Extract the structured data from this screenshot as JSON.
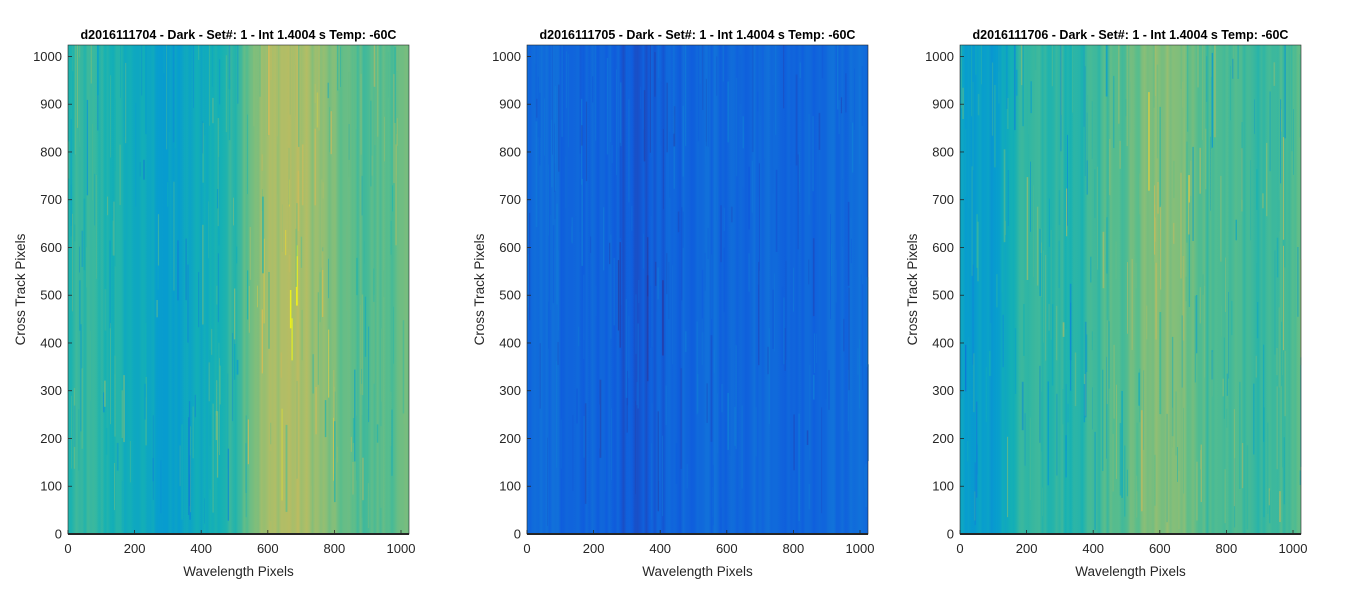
{
  "chart_data": [
    {
      "type": "heatmap",
      "title": "d2016111704 - Dark - Set#: 1 - Int 1.4004 s Temp: -60C",
      "xlabel": "Wavelength Pixels",
      "ylabel": "Cross Track Pixels",
      "xlim": [
        0,
        1024
      ],
      "ylim": [
        0,
        1024
      ],
      "xticks": [
        0,
        200,
        400,
        600,
        800,
        1000
      ],
      "yticks": [
        0,
        100,
        200,
        300,
        400,
        500,
        600,
        700,
        800,
        900,
        1000
      ],
      "grid": false,
      "colormap": "parula",
      "column_profile": {
        "x": [
          0,
          50,
          100,
          150,
          200,
          250,
          300,
          350,
          400,
          450,
          500,
          550,
          600,
          650,
          700,
          750,
          800,
          850,
          900,
          950,
          1024
        ],
        "level": [
          0.52,
          0.55,
          0.53,
          0.5,
          0.46,
          0.44,
          0.38,
          0.42,
          0.47,
          0.5,
          0.55,
          0.68,
          0.74,
          0.78,
          0.76,
          0.72,
          0.66,
          0.62,
          0.6,
          0.62,
          0.64
        ]
      }
    },
    {
      "type": "heatmap",
      "title": "d2016111705 - Dark - Set#: 1 - Int 1.4004 s Temp: -60C",
      "xlabel": "Wavelength Pixels",
      "ylabel": "Cross Track Pixels",
      "xlim": [
        0,
        1024
      ],
      "ylim": [
        0,
        1024
      ],
      "xticks": [
        0,
        200,
        400,
        600,
        800,
        1000
      ],
      "yticks": [
        0,
        100,
        200,
        300,
        400,
        500,
        600,
        700,
        800,
        900,
        1000
      ],
      "grid": false,
      "colormap": "parula",
      "column_profile": {
        "x": [
          0,
          50,
          100,
          150,
          200,
          250,
          300,
          350,
          400,
          450,
          500,
          550,
          600,
          650,
          700,
          750,
          800,
          850,
          900,
          950,
          1024
        ],
        "level": [
          0.17,
          0.17,
          0.16,
          0.16,
          0.15,
          0.14,
          0.12,
          0.12,
          0.14,
          0.15,
          0.16,
          0.17,
          0.17,
          0.17,
          0.17,
          0.17,
          0.17,
          0.17,
          0.17,
          0.17,
          0.17
        ]
      }
    },
    {
      "type": "heatmap",
      "title": "d2016111706 - Dark - Set#: 1 - Int 1.4004 s Temp: -60C",
      "xlabel": "Wavelength Pixels",
      "ylabel": "Cross Track Pixels",
      "xlim": [
        0,
        1024
      ],
      "ylim": [
        0,
        1024
      ],
      "xticks": [
        0,
        200,
        400,
        600,
        800,
        1000
      ],
      "yticks": [
        0,
        100,
        200,
        300,
        400,
        500,
        600,
        700,
        800,
        900,
        1000
      ],
      "grid": false,
      "colormap": "parula",
      "column_profile": {
        "x": [
          0,
          50,
          100,
          150,
          200,
          250,
          300,
          350,
          400,
          450,
          500,
          550,
          600,
          650,
          700,
          750,
          800,
          850,
          900,
          950,
          1024
        ],
        "level": [
          0.42,
          0.4,
          0.38,
          0.5,
          0.54,
          0.55,
          0.54,
          0.52,
          0.56,
          0.6,
          0.62,
          0.66,
          0.7,
          0.72,
          0.64,
          0.58,
          0.57,
          0.58,
          0.57,
          0.58,
          0.6
        ]
      }
    }
  ]
}
